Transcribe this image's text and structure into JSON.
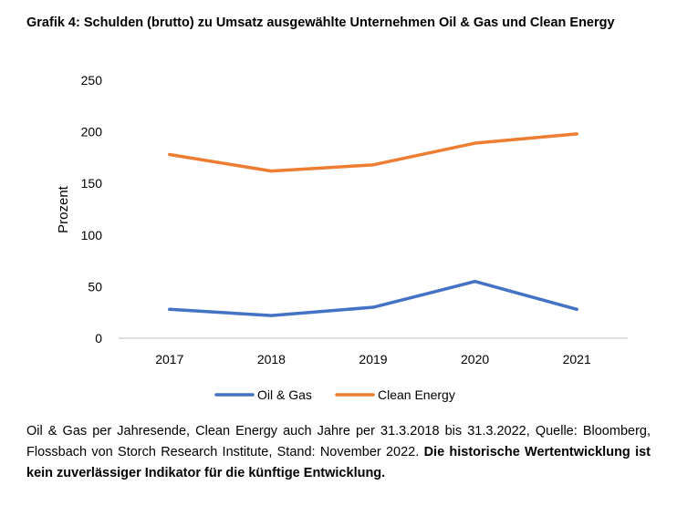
{
  "title": "Grafik 4: Schulden (brutto) zu Umsatz ausgewählte Unternehmen Oil & Gas und Clean Energy",
  "chart_data": {
    "type": "line",
    "title": "Grafik 4: Schulden (brutto) zu Umsatz ausgewählte Unternehmen Oil & Gas und Clean Energy",
    "xlabel": "",
    "ylabel": "Prozent",
    "categories": [
      "2017",
      "2018",
      "2019",
      "2020",
      "2021"
    ],
    "ylim": [
      0,
      250
    ],
    "yticks": [
      "0",
      "50",
      "100",
      "150",
      "200",
      "250"
    ],
    "grid": false,
    "legend_position": "bottom",
    "series": [
      {
        "name": "Oil & Gas",
        "color": "#4472C4",
        "values": [
          28,
          22,
          30,
          55,
          28
        ]
      },
      {
        "name": "Clean Energy",
        "color": "#ED7D31",
        "values": [
          178,
          162,
          168,
          189,
          198
        ]
      }
    ]
  },
  "footnote": {
    "text": "Oil & Gas per Jahresende, Clean Energy auch Jahre per 31.3.2018 bis 31.3.2022, Quelle: Bloomberg, Flossbach von Storch Research Institute, Stand: November 2022. ",
    "bold": "Die historische Wertentwicklung ist kein zuverlässiger Indikator für die künftige Entwicklung."
  }
}
